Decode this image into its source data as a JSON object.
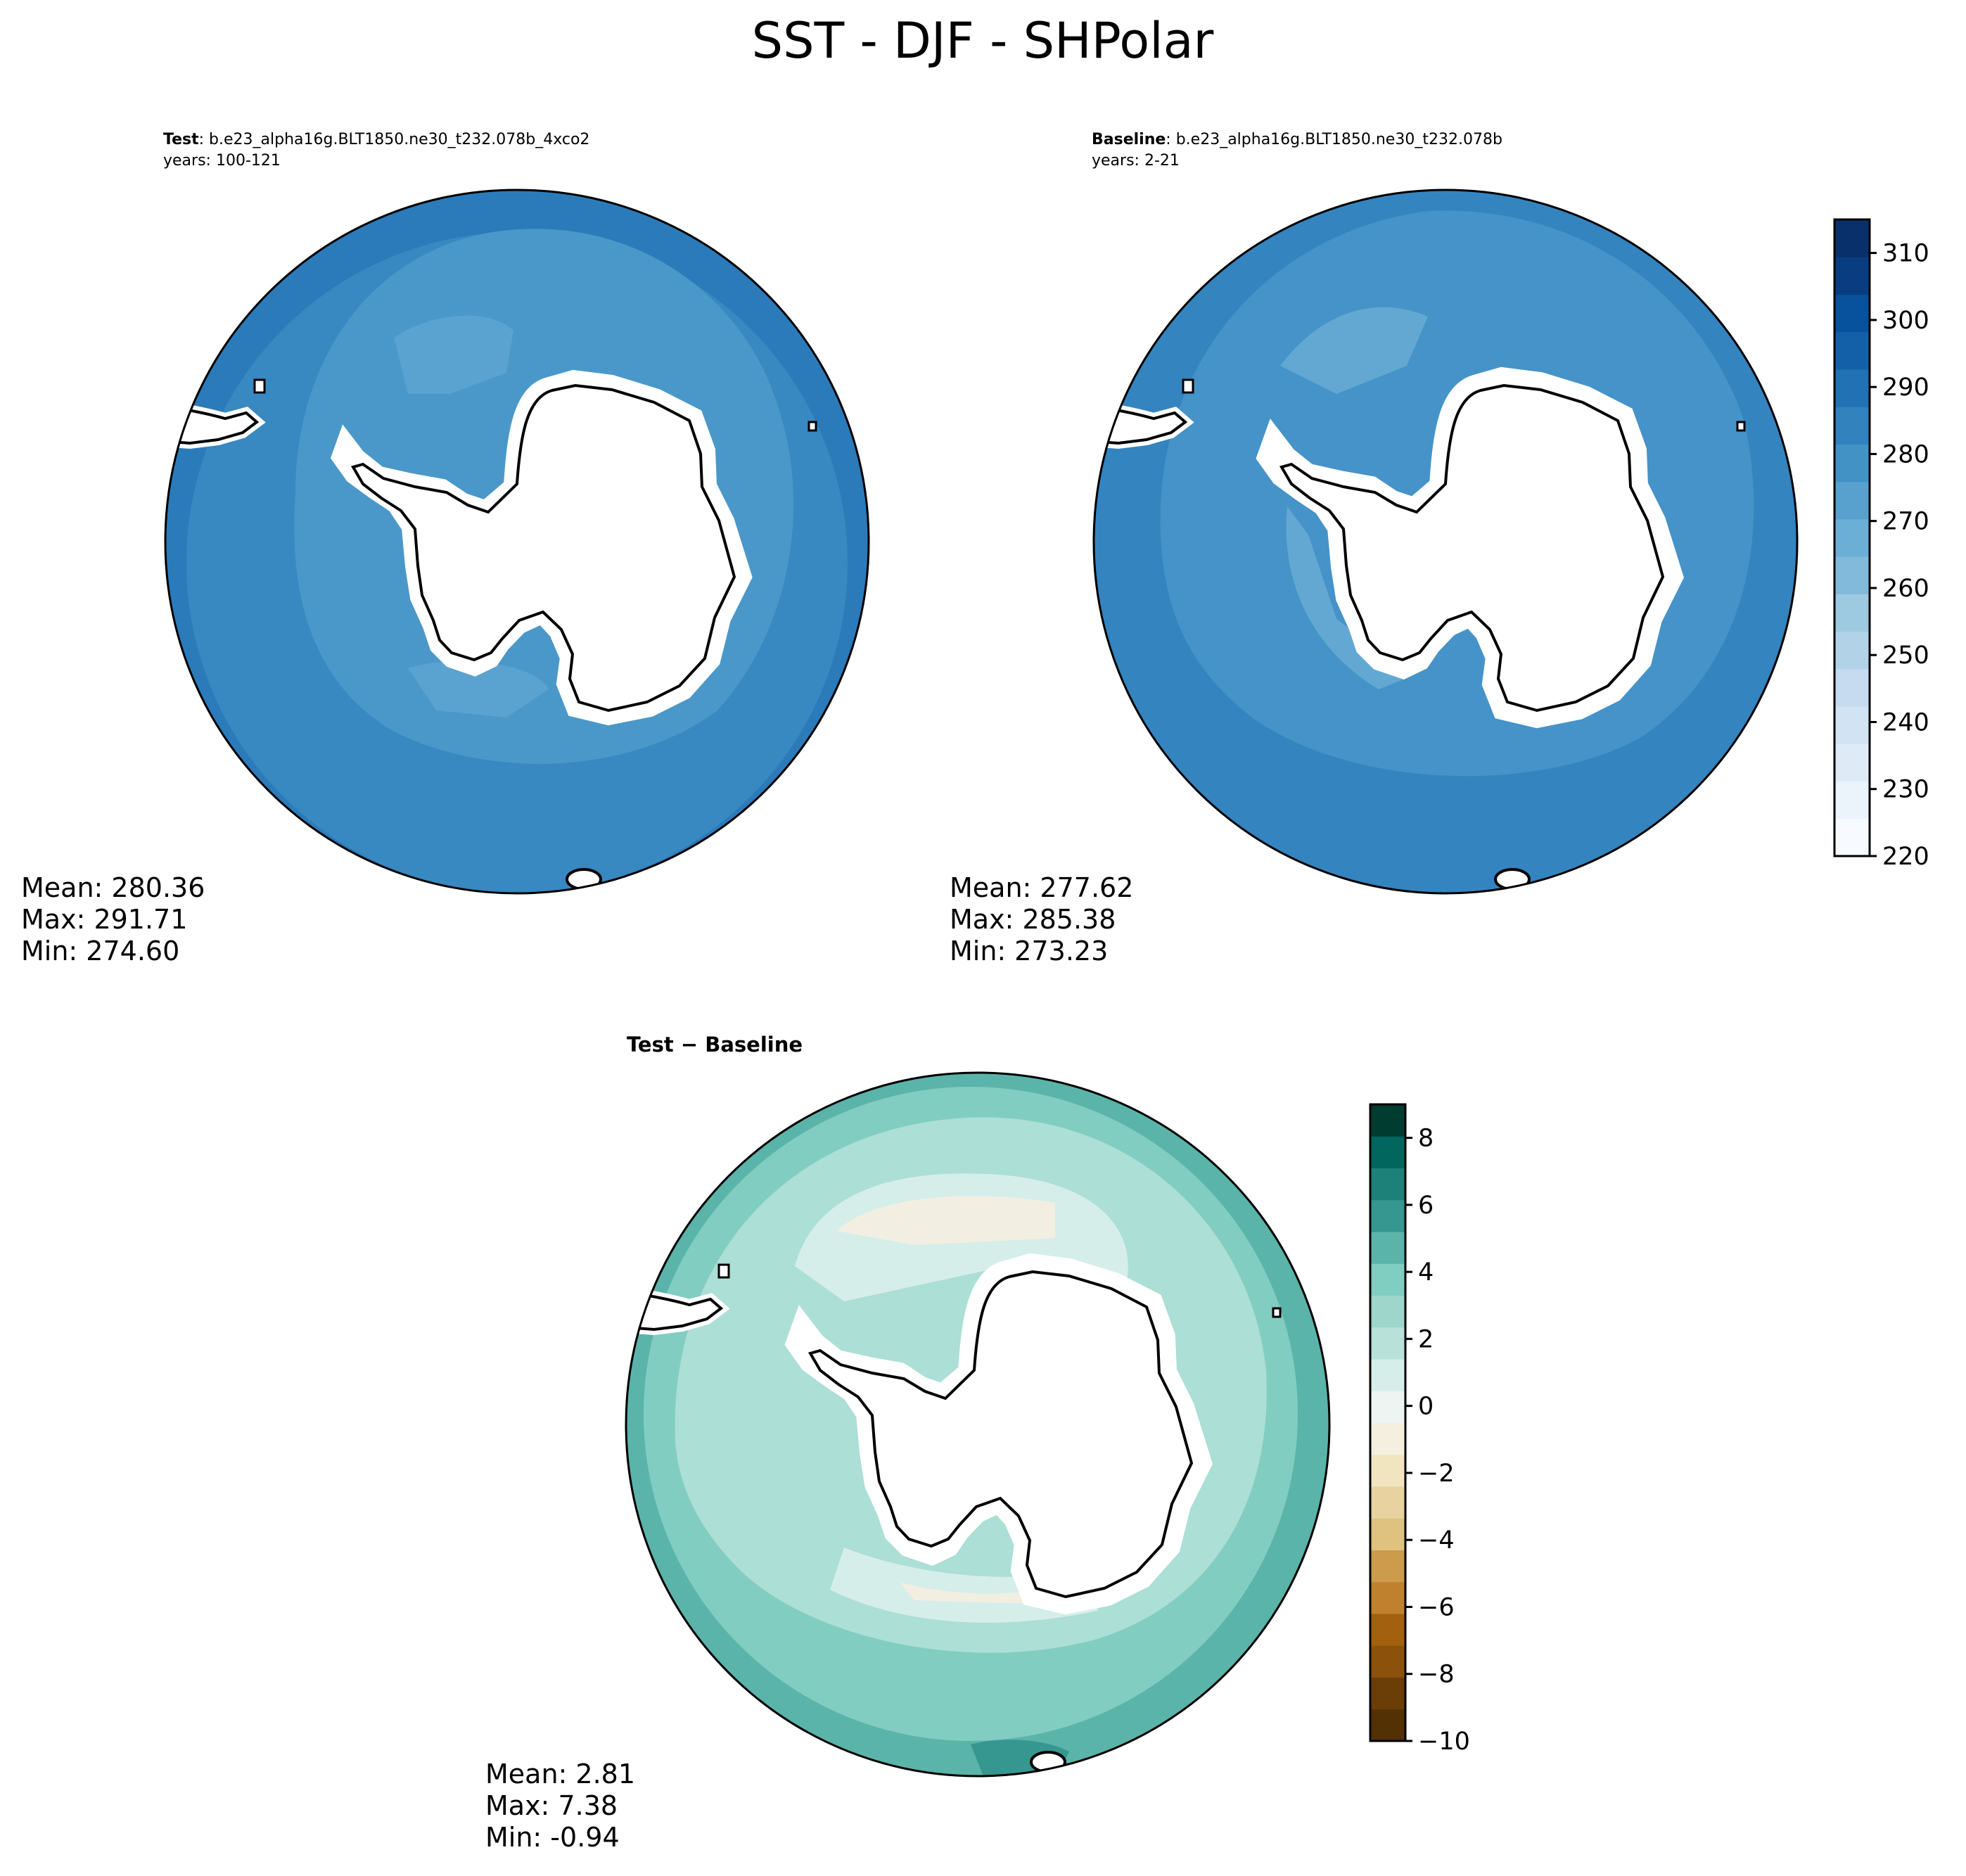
{
  "figure": {
    "title": "SST - DJF - SHPolar"
  },
  "test_panel": {
    "label": "Test",
    "case": ": b.e23_alpha16g.BLT1850.ne30_t232.078b_4xco2",
    "years": "years: 100-121",
    "stats": {
      "mean": "Mean: 280.36",
      "max": "Max: 291.71",
      "min": "Min: 274.60"
    }
  },
  "baseline_panel": {
    "label": "Baseline",
    "case": ": b.e23_alpha16g.BLT1850.ne30_t232.078b",
    "years": "years: 2-21",
    "stats": {
      "mean": "Mean: 277.62",
      "max": "Max: 285.38",
      "min": "Min: 273.23"
    }
  },
  "diff_panel": {
    "title": "Test − Baseline",
    "stats": {
      "mean": "Mean:  2.81",
      "max": "Max:  7.38",
      "min": "Min: -0.94"
    }
  },
  "colorbar_main": {
    "colormap": "Blues",
    "range": [
      220,
      315
    ],
    "level_step": 5,
    "ticks": [
      "220",
      "230",
      "240",
      "250",
      "260",
      "270",
      "280",
      "290",
      "300",
      "310"
    ],
    "colors": [
      "#f7fbff",
      "#ebf3fb",
      "#deebf7",
      "#d2e3f3",
      "#c6dbef",
      "#b2d2e8",
      "#9ecae1",
      "#82badb",
      "#6baed6",
      "#58a1cf",
      "#4292c6",
      "#3182bd",
      "#2171b5",
      "#1460a8",
      "#08519c",
      "#083e81",
      "#08306b"
    ]
  },
  "colorbar_diff": {
    "colormap": "BrBG",
    "range": [
      -10,
      9
    ],
    "level_step": 1,
    "ticks": [
      "−10",
      "−8",
      "−6",
      "−4",
      "−2",
      "0",
      "2",
      "4",
      "6",
      "8"
    ],
    "colors": [
      "#543005",
      "#6b3d07",
      "#8c510a",
      "#a3610f",
      "#bf812d",
      "#cd9b4c",
      "#dfc27d",
      "#e8d3a0",
      "#f1e5c0",
      "#f5efe0",
      "#eef4f2",
      "#d6eee9",
      "#b8e1da",
      "#9fd6cc",
      "#80cdc1",
      "#5ab4a9",
      "#35978f",
      "#1e8179",
      "#01665e",
      "#003c30"
    ]
  },
  "map_colors": {
    "test": {
      "outer": "#2b7bba",
      "ring": "#3888c1",
      "inner": "#4a98c9",
      "patch": "#5aa2cf"
    },
    "baseline": {
      "outer": "#3484c0",
      "ring": "#4593c8",
      "inner": "#4e9acb",
      "patch": "#62a8d3"
    },
    "diff": {
      "outer": "#5ab4a9",
      "ring": "#82cdc1",
      "inner": "#acdfd6",
      "light": "#d6eee9",
      "neutral": "#f2efe2",
      "dark": "#35978f"
    }
  }
}
